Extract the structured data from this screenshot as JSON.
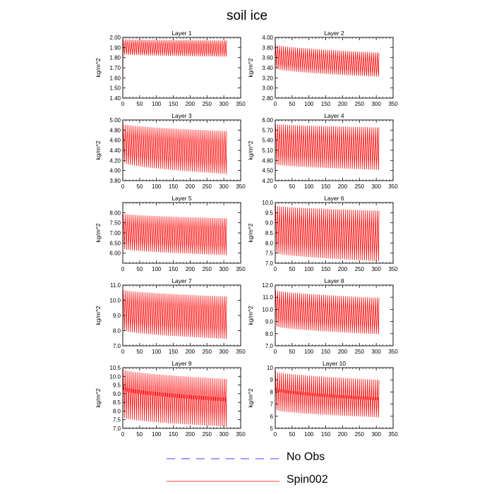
{
  "figure": {
    "title": "soil ice"
  },
  "chart_data": [
    {
      "type": "line",
      "title": "Layer 1",
      "ylabel": "kg/m^2",
      "xlim": [
        0,
        350
      ],
      "ylim": [
        1.4,
        2.0
      ],
      "xticks": [
        "0",
        "50",
        "100",
        "150",
        "200",
        "250",
        "300",
        "350"
      ],
      "yticks": [
        "1.40",
        "1.50",
        "1.60",
        "1.70",
        "1.80",
        "1.90",
        "2.00"
      ],
      "series": [
        {
          "name": "Spin002",
          "color": "#ff0000",
          "pattern": {
            "x_start": 0,
            "x_end": 308,
            "cycles": 52,
            "initial": 1.43,
            "upper": [
              1.98,
              1.97
            ],
            "lower": [
              1.83,
              1.81
            ]
          }
        }
      ]
    },
    {
      "type": "line",
      "title": "Layer 2",
      "ylabel": "kg/m^2",
      "xlim": [
        0,
        350
      ],
      "ylim": [
        2.8,
        4.0
      ],
      "xticks": [
        "0",
        "50",
        "100",
        "150",
        "200",
        "250",
        "300",
        "350"
      ],
      "yticks": [
        "2.80",
        "3.00",
        "3.20",
        "3.40",
        "3.60",
        "3.80",
        "4.00"
      ],
      "series": [
        {
          "name": "Spin002",
          "color": "#ff0000",
          "pattern": {
            "x_start": 0,
            "x_end": 308,
            "cycles": 52,
            "initial": 2.95,
            "upper": [
              3.86,
              3.7
            ],
            "lower": [
              3.38,
              3.22
            ]
          }
        }
      ]
    },
    {
      "type": "line",
      "title": "Layer 3",
      "ylabel": "kg/m^2",
      "xlim": [
        0,
        350
      ],
      "ylim": [
        3.8,
        5.0
      ],
      "xticks": [
        "0",
        "50",
        "100",
        "150",
        "200",
        "250",
        "300",
        "350"
      ],
      "yticks": [
        "3.80",
        "4.00",
        "4.20",
        "4.40",
        "4.60",
        "4.80",
        "5.00"
      ],
      "series": [
        {
          "name": "Spin002",
          "color": "#ff0000",
          "pattern": {
            "x_start": 0,
            "x_end": 308,
            "cycles": 52,
            "initial": 4.0,
            "upper": [
              4.92,
              4.78
            ],
            "lower": [
              4.15,
              3.93
            ]
          }
        }
      ]
    },
    {
      "type": "line",
      "title": "Layer 4",
      "ylabel": "kg/m^2",
      "xlim": [
        0,
        350
      ],
      "ylim": [
        4.2,
        6.0
      ],
      "xticks": [
        "0",
        "50",
        "100",
        "150",
        "200",
        "250",
        "300",
        "350"
      ],
      "yticks": [
        "4.20",
        "4.50",
        "4.80",
        "5.10",
        "5.40",
        "5.70",
        "6.00"
      ],
      "series": [
        {
          "name": "Spin002",
          "color": "#ff0000",
          "pattern": {
            "x_start": 0,
            "x_end": 308,
            "cycles": 52,
            "initial": 4.45,
            "upper": [
              5.88,
              5.78
            ],
            "lower": [
              4.68,
              4.52
            ]
          }
        }
      ]
    },
    {
      "type": "line",
      "title": "Layer 5",
      "ylabel": "kg/m^2",
      "xlim": [
        0,
        350
      ],
      "ylim": [
        5.5,
        8.5
      ],
      "xticks": [
        "0",
        "50",
        "100",
        "150",
        "200",
        "250",
        "300",
        "350"
      ],
      "yticks": [
        "6.00",
        "6.50",
        "7.00",
        "7.50",
        "8.00"
      ],
      "series": [
        {
          "name": "Spin002",
          "color": "#ff0000",
          "pattern": {
            "x_start": 0,
            "x_end": 308,
            "cycles": 52,
            "initial": 6.3,
            "upper": [
              7.95,
              7.72
            ],
            "lower": [
              6.2,
              5.9
            ]
          }
        }
      ]
    },
    {
      "type": "line",
      "title": "Layer 6",
      "ylabel": "kg/m^2",
      "xlim": [
        0,
        350
      ],
      "ylim": [
        7.0,
        10.0
      ],
      "xticks": [
        "0",
        "50",
        "100",
        "150",
        "200",
        "250",
        "300",
        "350"
      ],
      "yticks": [
        "7.0",
        "7.5",
        "8.0",
        "8.5",
        "9.0",
        "9.5",
        "10.0"
      ],
      "series": [
        {
          "name": "Spin002",
          "color": "#ff0000",
          "pattern": {
            "x_start": 0,
            "x_end": 308,
            "cycles": 52,
            "initial": 7.5,
            "upper": [
              9.85,
              9.6
            ],
            "lower": [
              7.5,
              7.1
            ]
          }
        }
      ]
    },
    {
      "type": "line",
      "title": "Layer 7",
      "ylabel": "kg/m^2",
      "xlim": [
        0,
        350
      ],
      "ylim": [
        7.0,
        11.0
      ],
      "xticks": [
        "0",
        "50",
        "100",
        "150",
        "200",
        "250",
        "300",
        "350"
      ],
      "yticks": [
        "7.0",
        "8.0",
        "9.0",
        "10.0",
        "11.0"
      ],
      "series": [
        {
          "name": "Spin002",
          "color": "#ff0000",
          "pattern": {
            "x_start": 0,
            "x_end": 308,
            "cycles": 52,
            "initial": 8.0,
            "upper": [
              10.7,
              10.25
            ],
            "lower": [
              8.0,
              7.45
            ]
          }
        }
      ]
    },
    {
      "type": "line",
      "title": "Layer 8",
      "ylabel": "kg/m^2",
      "xlim": [
        0,
        350
      ],
      "ylim": [
        7.0,
        12.0
      ],
      "xticks": [
        "0",
        "50",
        "100",
        "150",
        "200",
        "250",
        "300",
        "350"
      ],
      "yticks": [
        "7.0",
        "8.0",
        "9.0",
        "10.0",
        "11.0",
        "12.0"
      ],
      "series": [
        {
          "name": "Spin002",
          "color": "#ff0000",
          "pattern": {
            "x_start": 0,
            "x_end": 308,
            "cycles": 52,
            "initial": 8.3,
            "upper": [
              11.6,
              10.95
            ],
            "lower": [
              8.6,
              7.95
            ]
          }
        }
      ]
    },
    {
      "type": "line",
      "title": "Layer 9",
      "ylabel": "kg/m^2",
      "xlim": [
        0,
        350
      ],
      "ylim": [
        7.0,
        10.5
      ],
      "xticks": [
        "0",
        "50",
        "100",
        "150",
        "200",
        "250",
        "300",
        "350"
      ],
      "yticks": [
        "7.0",
        "7.5",
        "8.0",
        "8.5",
        "9.0",
        "9.5",
        "10.0",
        "10.5"
      ],
      "series": [
        {
          "name": "Spin002",
          "color": "#ff0000",
          "pattern": {
            "x_start": 0,
            "x_end": 308,
            "cycles": 52,
            "initial": 7.8,
            "upper": [
              10.4,
              9.85
            ],
            "lower": [
              7.6,
              7.1
            ],
            "mid": [
              9.2,
              8.55
            ]
          }
        }
      ]
    },
    {
      "type": "line",
      "title": "Layer 10",
      "ylabel": "kg/m^2",
      "xlim": [
        0,
        350
      ],
      "ylim": [
        5.0,
        10.0
      ],
      "xticks": [
        "0",
        "50",
        "100",
        "150",
        "200",
        "250",
        "300",
        "350"
      ],
      "yticks": [
        "5",
        "6",
        "7",
        "8",
        "9",
        "10"
      ],
      "series": [
        {
          "name": "Spin002",
          "color": "#ff0000",
          "pattern": {
            "x_start": 0,
            "x_end": 308,
            "cycles": 52,
            "initial": 6.3,
            "upper": [
              9.7,
              9.0
            ],
            "lower": [
              6.5,
              5.9
            ],
            "mid": [
              8.1,
              7.3
            ]
          }
        }
      ]
    }
  ],
  "legend": {
    "items": [
      {
        "label": "No Obs",
        "color": "#0000ff",
        "style": "dashed"
      },
      {
        "label": "Spin002",
        "color": "#ff0000",
        "style": "solid"
      }
    ]
  }
}
